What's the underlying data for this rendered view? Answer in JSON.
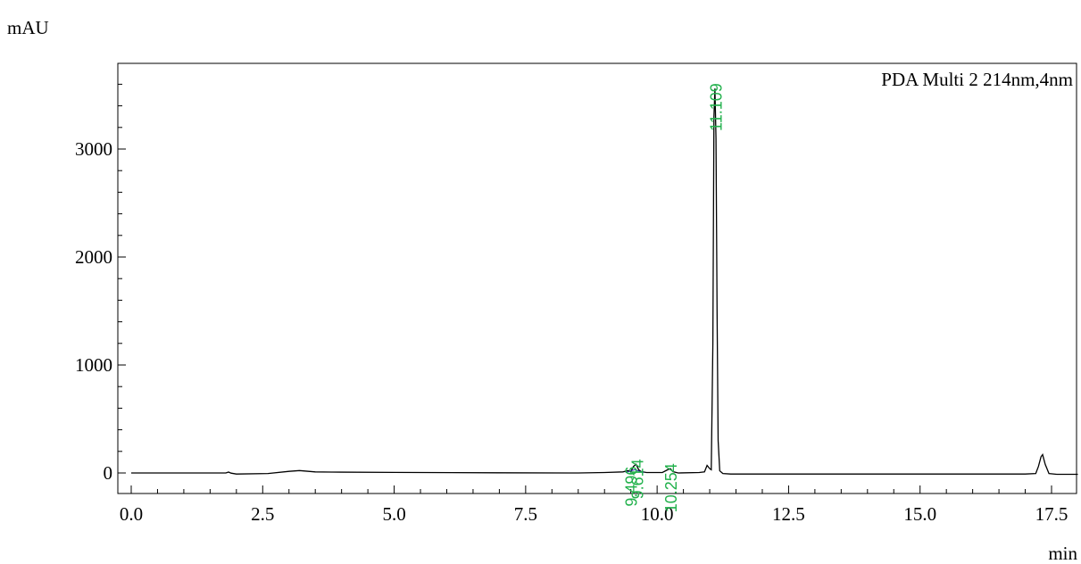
{
  "chart_data": {
    "type": "line",
    "y_unit": "mAU",
    "x_unit": "min",
    "legend": "PDA Multi 2 214nm,4nm",
    "xlim": [
      0.0,
      18.0
    ],
    "ylim": [
      -180,
      3650
    ],
    "x_ticks": [
      0.0,
      2.5,
      5.0,
      7.5,
      10.0,
      12.5,
      15.0,
      17.5
    ],
    "x_tick_labels": [
      "0.0",
      "2.5",
      "5.0",
      "7.5",
      "10.0",
      "12.5",
      "15.0",
      "17.5"
    ],
    "y_ticks": [
      0,
      1000,
      2000,
      3000
    ],
    "y_tick_labels": [
      "0",
      "1000",
      "2000",
      "3000"
    ],
    "series": [
      {
        "x": [
          0.0,
          1.8,
          1.85,
          1.9,
          2.0,
          2.6,
          3.0,
          3.2,
          3.3,
          3.5,
          3.8,
          5.0,
          7.0,
          8.5,
          9.0,
          9.35,
          9.45,
          9.5,
          9.55,
          9.6,
          9.65,
          9.7,
          9.8,
          10.1,
          10.2,
          10.25,
          10.3,
          10.4,
          10.8,
          10.9,
          10.95,
          11.0,
          11.03,
          11.06,
          11.08,
          11.1,
          11.12,
          11.14,
          11.16,
          11.19,
          11.25,
          11.4,
          12.0,
          14.0,
          17.0,
          17.2,
          17.25,
          17.3,
          17.33,
          17.38,
          17.45,
          17.6,
          18.0
        ],
        "y": [
          0,
          0,
          8,
          -2,
          -10,
          -5,
          15,
          22,
          18,
          10,
          8,
          5,
          2,
          0,
          4,
          10,
          22,
          12,
          60,
          80,
          30,
          12,
          4,
          4,
          30,
          40,
          12,
          0,
          4,
          10,
          70,
          40,
          30,
          1200,
          3300,
          3560,
          3100,
          1500,
          300,
          20,
          -5,
          -10,
          -10,
          -10,
          -10,
          -5,
          60,
          150,
          170,
          80,
          -5,
          -12,
          -12
        ]
      }
    ],
    "peaks": [
      {
        "rt": "9.496",
        "x": 9.496,
        "y": 12
      },
      {
        "rt": "9.614",
        "x": 9.614,
        "y": 80
      },
      {
        "rt": "10.254",
        "x": 10.254,
        "y": 40
      },
      {
        "rt": "11.109",
        "x": 11.109,
        "y": 3560
      }
    ]
  }
}
